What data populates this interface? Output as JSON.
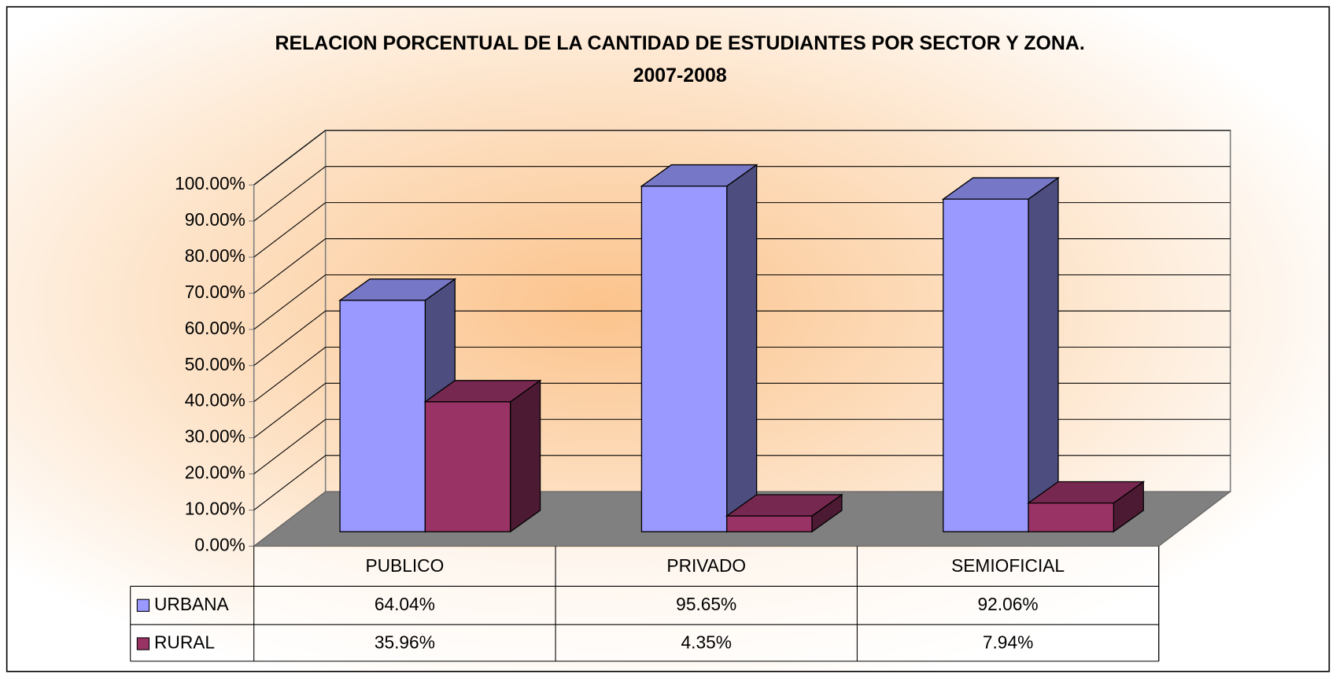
{
  "chart_data": {
    "type": "bar3d",
    "title": "RELACION PORCENTUAL DE LA CANTIDAD DE ESTUDIANTES POR SECTOR Y ZONA.",
    "subtitle": "2007-2008",
    "categories": [
      "PUBLICO",
      "PRIVADO",
      "SEMIOFICIAL"
    ],
    "series": [
      {
        "name": "URBANA",
        "color": "#9999ff",
        "values": [
          64.04,
          95.65,
          92.06
        ],
        "value_labels": [
          "64.04%",
          "95.65%",
          "92.06%"
        ]
      },
      {
        "name": "RURAL",
        "color": "#993366",
        "values": [
          35.96,
          4.35,
          7.94
        ],
        "value_labels": [
          "35.96%",
          "4.35%",
          "7.94%"
        ]
      }
    ],
    "ylim": [
      0,
      100
    ],
    "yticks": [
      {
        "value": 0,
        "label": "0.00%"
      },
      {
        "value": 10,
        "label": "10.00%"
      },
      {
        "value": 20,
        "label": "20.00%"
      },
      {
        "value": 30,
        "label": "30.00%"
      },
      {
        "value": 40,
        "label": "40.00%"
      },
      {
        "value": 50,
        "label": "50.00%"
      },
      {
        "value": 60,
        "label": "60.00%"
      },
      {
        "value": 70,
        "label": "70.00%"
      },
      {
        "value": 80,
        "label": "80.00%"
      },
      {
        "value": 90,
        "label": "90.00%"
      },
      {
        "value": 100,
        "label": "100.00%"
      }
    ],
    "grid": true,
    "data_table": true
  }
}
